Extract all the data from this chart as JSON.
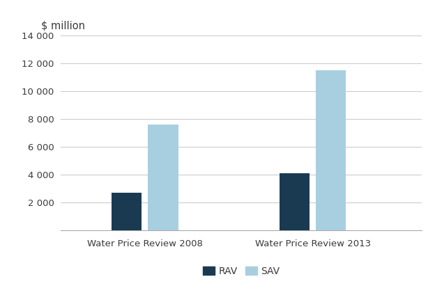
{
  "categories": [
    "Water Price Review 2008",
    "Water Price Review 2013"
  ],
  "rav_values": [
    2700,
    4100
  ],
  "sav_values": [
    7600,
    11500
  ],
  "rav_color": "#1a3a52",
  "sav_color": "#a8cfe0",
  "ylabel": "$ million",
  "ylim": [
    0,
    14000
  ],
  "yticks": [
    0,
    2000,
    4000,
    6000,
    8000,
    10000,
    12000,
    14000
  ],
  "ytick_labels": [
    "",
    "2 000",
    "4 000",
    "6 000",
    "8 000",
    "10 000",
    "12 000",
    "14 000"
  ],
  "legend_labels": [
    "RAV",
    "SAV"
  ],
  "bar_width": 0.18,
  "background_color": "#ffffff",
  "grid_color": "#cccccc",
  "text_color": "#3a3a3a"
}
